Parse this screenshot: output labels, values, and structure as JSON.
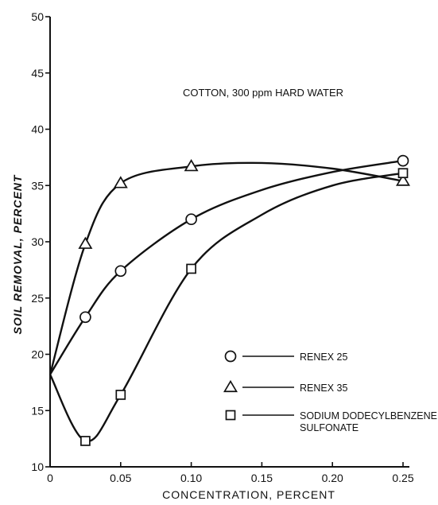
{
  "chart_data": {
    "type": "scatter",
    "title": "",
    "annotation": "COTTON, 300 ppm HARD WATER",
    "xlabel": "CONCENTRATION, PERCENT",
    "ylabel": "SOIL REMOVAL, PERCENT",
    "xlim": [
      0,
      0.25
    ],
    "ylim": [
      10,
      50
    ],
    "x_ticks": [
      0,
      0.05,
      0.1,
      0.15,
      0.2,
      0.25
    ],
    "x_tick_labels": [
      "0",
      "0.05",
      "0.10",
      "0.15",
      "0.20",
      "0.25"
    ],
    "y_ticks": [
      10,
      15,
      20,
      25,
      30,
      35,
      40,
      45,
      50
    ],
    "y_tick_labels": [
      "10",
      "15",
      "20",
      "25",
      "30",
      "35",
      "40",
      "45",
      "50"
    ],
    "grid": false,
    "legend_position": "bottom-right",
    "series": [
      {
        "name": "RENEX 25",
        "marker": "circle",
        "points": [
          [
            0.025,
            23.3
          ],
          [
            0.05,
            27.4
          ],
          [
            0.1,
            32.0
          ],
          [
            0.25,
            37.2
          ]
        ],
        "curve": [
          [
            0,
            18.2
          ],
          [
            0.025,
            23.3
          ],
          [
            0.05,
            27.4
          ],
          [
            0.1,
            32.0
          ],
          [
            0.15,
            34.6
          ],
          [
            0.2,
            36.2
          ],
          [
            0.25,
            37.2
          ]
        ]
      },
      {
        "name": "RENEX 35",
        "marker": "triangle",
        "points": [
          [
            0.025,
            29.8
          ],
          [
            0.05,
            35.2
          ],
          [
            0.1,
            36.7
          ],
          [
            0.25,
            35.4
          ]
        ],
        "curve": [
          [
            0,
            18.2
          ],
          [
            0.025,
            29.8
          ],
          [
            0.05,
            35.2
          ],
          [
            0.1,
            36.7
          ],
          [
            0.15,
            37.0
          ],
          [
            0.2,
            36.5
          ],
          [
            0.25,
            35.4
          ]
        ]
      },
      {
        "name": "SODIUM DODECYLBENZENE SULFONATE",
        "legend_lines": [
          "SODIUM DODECYLBENZENE",
          "SULFONATE"
        ],
        "marker": "square",
        "points": [
          [
            0.025,
            12.3
          ],
          [
            0.05,
            16.4
          ],
          [
            0.1,
            27.6
          ],
          [
            0.25,
            36.1
          ]
        ],
        "curve": [
          [
            0,
            18.2
          ],
          [
            0.025,
            12.3
          ],
          [
            0.05,
            16.4
          ],
          [
            0.1,
            27.6
          ],
          [
            0.15,
            32.4
          ],
          [
            0.2,
            35.0
          ],
          [
            0.25,
            36.1
          ]
        ]
      }
    ]
  }
}
